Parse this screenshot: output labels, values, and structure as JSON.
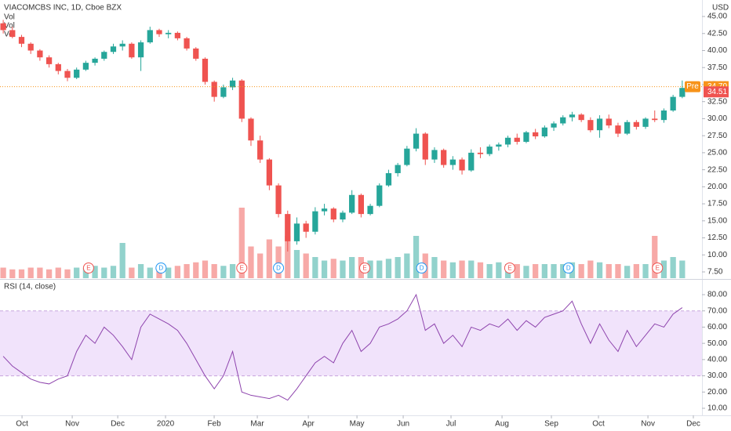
{
  "chart_data": {
    "type": "candlestick",
    "title": "VIACOMCBS INC, 1D, Cboe BZX",
    "indicators": [
      "Vol",
      "Vol",
      "Vol"
    ],
    "currency": "USD",
    "up_color": "#26a69a",
    "down_color": "#ef5350",
    "open": [
      44,
      43,
      42,
      41,
      40,
      39,
      38,
      37,
      36,
      37.2,
      38.2,
      38.8,
      39.8,
      40.6,
      41,
      39,
      41.2,
      43,
      42.4,
      42.6,
      41.8,
      40.3,
      38.8,
      35.4,
      33.2,
      34.6,
      35.6,
      30,
      26.8,
      24,
      20.2,
      16,
      12,
      14.6,
      13.4,
      16.4,
      16.8,
      15.2,
      16.2,
      18.8,
      16,
      17.2,
      20.2,
      22,
      23.2,
      25.6,
      27.8,
      24,
      25.4,
      23.2,
      24,
      22.4,
      25,
      24.8,
      25.9,
      26.2,
      27.2,
      26.6,
      28,
      27.4,
      28.7,
      29.3,
      30.2,
      30.6,
      29.8,
      28.3,
      30,
      29,
      27.8,
      29.5,
      28.8,
      30,
      29.8,
      31.2,
      33.2
    ],
    "high": [
      44.5,
      43.5,
      42.3,
      41.2,
      40.2,
      39.3,
      38.2,
      37.3,
      37.5,
      38.5,
      39,
      40,
      41,
      41.5,
      41.2,
      41.5,
      43.5,
      43.2,
      43,
      42.8,
      42,
      40.5,
      39,
      35.6,
      35,
      36,
      35.8,
      30.2,
      27.5,
      24.2,
      20.5,
      16.5,
      15.5,
      15,
      17,
      17.5,
      17,
      16.5,
      19.5,
      19,
      17.5,
      20.5,
      22.5,
      23.5,
      26,
      28.6,
      28,
      25.8,
      25.6,
      24.5,
      24.3,
      25.5,
      25.8,
      26.2,
      26.5,
      27.5,
      27.8,
      28.2,
      28.5,
      29,
      29.6,
      30.5,
      31,
      30.8,
      30.2,
      30.5,
      30.6,
      29.4,
      29.8,
      29.8,
      30.2,
      31.2,
      31.5,
      33.5,
      35.6
    ],
    "low": [
      42.5,
      41.8,
      40.5,
      39.5,
      38.5,
      37.5,
      36.5,
      35.5,
      35.8,
      37,
      37.8,
      38.5,
      39.5,
      40,
      38.8,
      37,
      41,
      42,
      41.8,
      41.5,
      40,
      38.5,
      35,
      32.5,
      33,
      34.2,
      29.5,
      26,
      23.5,
      19.5,
      15.5,
      10.5,
      11.5,
      12.5,
      13,
      15.8,
      14.8,
      14.8,
      16,
      15.5,
      15.8,
      17,
      20,
      21.5,
      23,
      25.2,
      23.2,
      23.5,
      22.8,
      22.5,
      21.8,
      22.2,
      24.2,
      24.5,
      25.3,
      25.8,
      26.2,
      26.4,
      27,
      27.2,
      28.2,
      29,
      29.6,
      29.5,
      28,
      27.2,
      28.6,
      27.3,
      27.6,
      28.4,
      28.5,
      29.5,
      29.4,
      31,
      33
    ],
    "close": [
      43,
      42,
      41,
      40,
      39,
      38,
      37,
      36,
      37.2,
      38.2,
      38.8,
      39.8,
      40.6,
      41,
      39,
      41.2,
      43,
      42.4,
      42.6,
      41.8,
      40.3,
      38.8,
      35.4,
      33.2,
      34.6,
      35.6,
      30,
      26.8,
      24,
      20.2,
      16,
      12,
      14.6,
      13.4,
      16.4,
      16.8,
      15.2,
      16.2,
      18.8,
      16,
      17.2,
      20.2,
      22,
      23.2,
      25.6,
      27.8,
      24,
      25.4,
      23.2,
      24,
      22.4,
      25,
      24.8,
      25.9,
      26.2,
      27.2,
      26.6,
      28,
      27.4,
      28.7,
      29.3,
      30.2,
      30.6,
      29.8,
      28.3,
      30,
      29,
      27.8,
      29.5,
      28.8,
      30,
      29.8,
      31.2,
      33.2,
      34.51
    ],
    "volume": [
      3,
      2.5,
      2.5,
      3,
      3,
      2.5,
      3,
      2.5,
      3,
      3,
      3.5,
      3,
      3.5,
      10,
      3,
      4,
      3,
      3.5,
      3,
      3.5,
      4,
      4.5,
      5,
      4,
      3.5,
      4,
      20,
      9,
      7,
      11,
      9,
      12,
      8,
      7,
      6,
      5,
      5.5,
      5,
      6,
      6,
      5,
      5,
      5.5,
      6,
      7,
      12,
      7,
      6,
      5,
      4.5,
      5,
      5,
      4.5,
      4,
      4.5,
      4,
      4,
      3.5,
      4,
      4,
      4,
      4,
      4.5,
      4,
      5,
      4.5,
      4,
      4,
      3.5,
      4,
      4,
      12,
      5,
      6,
      5
    ],
    "pre_market": {
      "label": "Pre",
      "value": 34.7,
      "value_label": "34.70",
      "color": "#f7931a"
    },
    "events": [
      {
        "label": "E",
        "at": 9.3
      },
      {
        "label": "D",
        "at": 17.2
      },
      {
        "label": "E",
        "at": 26
      },
      {
        "label": "D",
        "at": 30
      },
      {
        "label": "E",
        "at": 39.4
      },
      {
        "label": "D",
        "at": 45.6
      },
      {
        "label": "E",
        "at": 55.2
      },
      {
        "label": "D",
        "at": 61.6
      },
      {
        "label": "E",
        "at": 71.3
      }
    ],
    "xlim": [
      -0.35,
      76.15
    ],
    "xticks": [
      {
        "value": 2.05,
        "label": "Oct"
      },
      {
        "value": 7.52,
        "label": "Nov"
      },
      {
        "value": 12.48,
        "label": "Dec"
      },
      {
        "value": 17.69,
        "label": "2020"
      },
      {
        "value": 22.99,
        "label": "Feb"
      },
      {
        "value": 27.69,
        "label": "Mar"
      },
      {
        "value": 33.25,
        "label": "Apr"
      },
      {
        "value": 38.55,
        "label": "May"
      },
      {
        "value": 43.59,
        "label": "Jun"
      },
      {
        "value": 48.8,
        "label": "Jul"
      },
      {
        "value": 54.36,
        "label": "Aug"
      },
      {
        "value": 59.74,
        "label": "Sep"
      },
      {
        "value": 64.87,
        "label": "Oct"
      },
      {
        "value": 70.26,
        "label": "Nov"
      },
      {
        "value": 75.21,
        "label": "Dec"
      }
    ],
    "ylim": [
      6.58,
      47.42
    ],
    "yticks": [
      {
        "value": 7.5,
        "label": "7.50"
      },
      {
        "value": 10,
        "label": "10.00"
      },
      {
        "value": 12.5,
        "label": "12.50"
      },
      {
        "value": 15,
        "label": "15.00"
      },
      {
        "value": 17.5,
        "label": "17.50"
      },
      {
        "value": 20,
        "label": "20.00"
      },
      {
        "value": 22.5,
        "label": "22.50"
      },
      {
        "value": 25,
        "label": "25.00"
      },
      {
        "value": 27.5,
        "label": "27.50"
      },
      {
        "value": 30,
        "label": "30.00"
      },
      {
        "value": 32.5,
        "label": "32.50"
      },
      {
        "value": 35,
        "label": "35.00"
      },
      {
        "value": 37.5,
        "label": "37.50"
      },
      {
        "value": 40,
        "label": "40.00"
      },
      {
        "value": 42.5,
        "label": "42.50"
      },
      {
        "value": 45,
        "label": "45.00"
      }
    ],
    "rsi": {
      "title": "RSI (14, close)",
      "color": "#8e44ad",
      "band": [
        30,
        70
      ],
      "band_color": "#f1e3fb",
      "values": [
        42,
        36,
        32,
        28,
        26,
        25,
        28,
        30,
        45,
        55,
        50,
        60,
        55,
        48,
        40,
        60,
        68,
        65,
        62,
        58,
        50,
        40,
        30,
        22,
        30,
        45,
        20,
        18,
        17,
        16,
        18,
        15,
        22,
        30,
        38,
        42,
        38,
        50,
        58,
        45,
        50,
        60,
        62,
        65,
        70,
        80,
        58,
        62,
        50,
        55,
        48,
        60,
        58,
        62,
        60,
        65,
        58,
        64,
        60,
        66,
        68,
        70,
        76,
        62,
        50,
        62,
        52,
        45,
        58,
        48,
        55,
        62,
        60,
        68,
        72
      ],
      "ylim": [
        5.65,
        88.7
      ],
      "yticks": [
        {
          "value": 10,
          "label": "10.00"
        },
        {
          "value": 20,
          "label": "20.00"
        },
        {
          "value": 30,
          "label": "30.00"
        },
        {
          "value": 40,
          "label": "40.00"
        },
        {
          "value": 50,
          "label": "50.00"
        },
        {
          "value": 60,
          "label": "60.00"
        },
        {
          "value": 70,
          "label": "70.00"
        },
        {
          "value": 80,
          "label": "80.00"
        }
      ]
    }
  }
}
